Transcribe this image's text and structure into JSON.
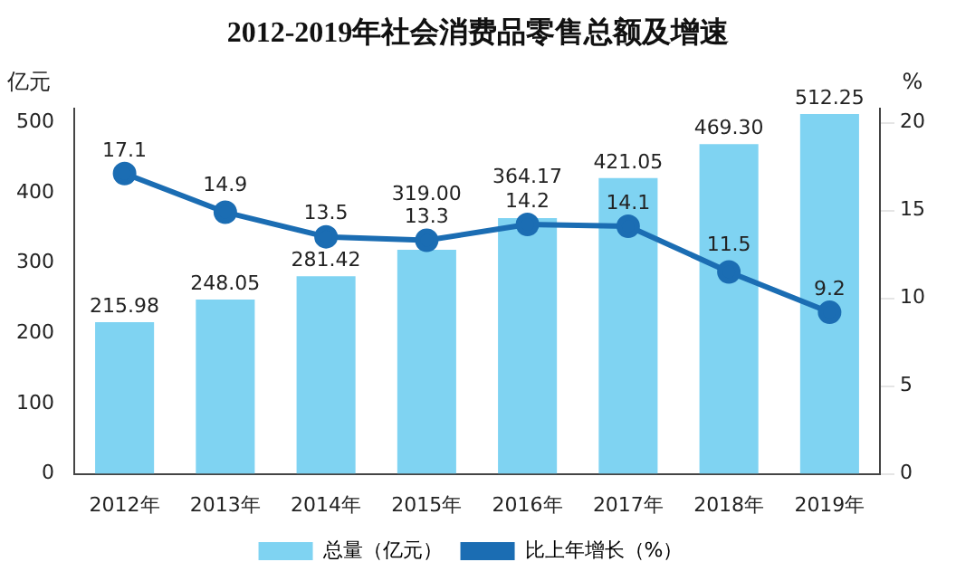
{
  "chart_data": {
    "type": "bar",
    "title": "2012-2019年社会消费品零售总额及增速",
    "categories": [
      "2012年",
      "2013年",
      "2014年",
      "2015年",
      "2016年",
      "2017年",
      "2018年",
      "2019年"
    ],
    "ylabel": "亿元",
    "y2label": "%",
    "ylim": [
      0,
      520
    ],
    "yticks": [
      0,
      100,
      200,
      300,
      400,
      500
    ],
    "y2lim": [
      0,
      20.8
    ],
    "y2ticks": [
      0,
      5,
      10,
      15,
      20
    ],
    "grid": false,
    "legend": "bottom",
    "marker": "circle",
    "series": [
      {
        "name": "总量（亿元）",
        "color": "#7fd3f2",
        "values": [
          215.98,
          248.05,
          281.42,
          319.0,
          364.17,
          421.05,
          469.3,
          512.25
        ],
        "value_labels": [
          "215.98",
          "248.05",
          "281.42",
          "319.00",
          "364.17",
          "421.05",
          "469.30",
          "512.25"
        ]
      },
      {
        "name": "比上年增长（%）",
        "type": "line",
        "axis": "y2",
        "color": "#1b6db3",
        "values": [
          17.1,
          14.9,
          13.5,
          13.3,
          14.2,
          14.1,
          11.5,
          9.2
        ],
        "value_labels": [
          "17.1",
          "14.9",
          "13.5",
          "13.3",
          "14.2",
          "14.1",
          "11.5",
          "9.2"
        ]
      }
    ]
  }
}
